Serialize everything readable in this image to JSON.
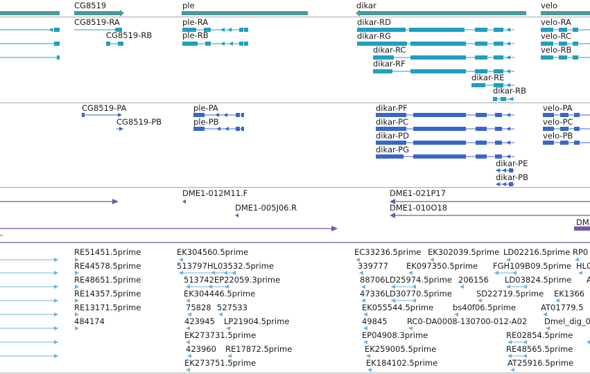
{
  "colors": {
    "gene_bar": "#4a9a9a",
    "transcript_a": "#1e9fc0",
    "transcript_b": "#3a66c8",
    "clone": "#7755aa",
    "est": "#6fb0dd",
    "separator": "#a8a8a8"
  },
  "tracks": {
    "genes": {
      "labels": [
        "CG8519",
        "ple",
        "dikar",
        "velo"
      ]
    },
    "transcripts_a": {
      "labels": [
        "CG8519-RA",
        "CG8519-RB",
        "ple-RA",
        "ple-RB",
        "dikar-RD",
        "dikar-RG",
        "dikar-RC",
        "dikar-RF",
        "dikar-RE",
        "dikar-RB",
        "velo-RA",
        "velo-RC",
        "velo-RB"
      ]
    },
    "transcripts_b": {
      "labels": [
        "CG8519-PA",
        "CG8519-PB",
        "ple-PA",
        "ple-PB",
        "dikar-PF",
        "dikar-PC",
        "dikar-PD",
        "dikar-PG",
        "dikar-PE",
        "dikar-PB",
        "velo-PA",
        "velo-PC",
        "velo-PB"
      ]
    },
    "clones": {
      "labels": [
        "DME1-012M11.F",
        "DME1-005J06.R",
        "DME1-021P17",
        "DME1-010O18",
        "DMI"
      ]
    },
    "ests": {
      "labels": [
        "RE51451.5prime",
        "RE44578.5prime",
        "RE48651.5prime",
        "RE14357.5prime",
        "RE13171.5prime",
        "484174",
        "EK304560.5prime",
        "513797HL03532.5prime",
        "513742EP22059.3prime",
        "EK304446.5prime",
        "75828",
        "527533",
        "423945",
        "LP21904.5prime",
        "EK273731.5prime",
        "423960",
        "RE17872.5prime",
        "EK273751.5prime",
        "EC33236.5prime",
        "EK302039.5prime",
        "LD02216.5prime",
        "RP0",
        "339777",
        "EK097350.5prime",
        "FGH109B09.5prime",
        "HL0",
        "88706LD25974.5prime",
        "206156",
        "LD03824.5prime",
        "A",
        "47336LD30770.5prime",
        "SD22719.5prime",
        "EK1366",
        "EK055544.5prime",
        "bs40f06.5prime",
        "AT01779.5",
        "49845",
        "RC0-DA0008-130700-012-A02",
        "Dmel_dig_0",
        "EP04908.3prime",
        "RE02854.5prime",
        "EK259005.5prime",
        "RE48565.5prime",
        "EK184102.5prime",
        "AT25916.5prime"
      ]
    }
  }
}
